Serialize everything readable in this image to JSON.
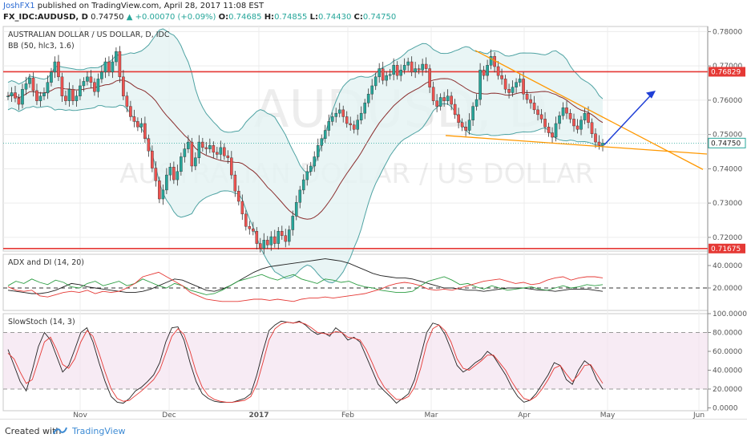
{
  "header": {
    "user": "JoshFX1",
    "published_text": " published on TradingView.com, April 28, 2017 11:08 EST",
    "symbol": "FX_IDC:AUDUSD, D",
    "last": "0.74750",
    "change": "+0.00070 (+0.09%)",
    "open": "0.74685",
    "high": "0.74855",
    "low": "0.74430",
    "close": "0.74750",
    "o_label": "O:",
    "h_label": "H:",
    "l_label": "L:",
    "c_label": "C:"
  },
  "footer": {
    "created_with": "Created with",
    "brand": "TradingView"
  },
  "watermark": {
    "big": "AUDUSD, D",
    "small": "AUSTRALIAN DOLLAR / US DOLLAR"
  },
  "colors": {
    "up": "#26a69a",
    "down": "#ef5350",
    "level": "#e53935",
    "trend": "#ff9800",
    "arrow": "#1f3fd6",
    "bb_band": "#4fa3a3",
    "bb_fill": "#e3f3f2",
    "bb_basis": "#8b2f2f",
    "adx": "#222222",
    "di_plus": "#2e9e44",
    "di_minus": "#e53935",
    "stoch_k": "#222222",
    "stoch_d": "#e53935"
  },
  "chart_data": [
    {
      "type": "candlestick",
      "title": "AUSTRALIAN DOLLAR / US DOLLAR, D, IDC",
      "indicator": "BB (50, hlc3, 1.6)",
      "ylim": [
        0.716,
        0.7815
      ],
      "y_ticks": [
        "0.78000",
        "0.77000",
        "0.76000",
        "0.75000",
        "0.74000",
        "0.73000",
        "0.72000"
      ],
      "x_ticks": [
        "Nov",
        "Dec",
        "2017",
        "Feb",
        "Mar",
        "Apr",
        "May",
        "Jun"
      ],
      "levels": [
        {
          "name": "resistance",
          "value": 0.76829,
          "label": "0.76829"
        },
        {
          "name": "support",
          "value": 0.71675,
          "label": "0.71675"
        }
      ],
      "last_price_label": "0.74750",
      "closes": [
        0.7612,
        0.7622,
        0.7606,
        0.7588,
        0.7632,
        0.7648,
        0.7665,
        0.7628,
        0.7598,
        0.7612,
        0.7621,
        0.7652,
        0.7682,
        0.7712,
        0.7668,
        0.7612,
        0.7598,
        0.7632,
        0.7598,
        0.7612,
        0.7642,
        0.7655,
        0.7668,
        0.7652,
        0.7625,
        0.7662,
        0.7682,
        0.7712,
        0.7682,
        0.7712,
        0.7742,
        0.7668,
        0.7612,
        0.7582,
        0.7552,
        0.7538,
        0.7522,
        0.7532,
        0.7488,
        0.7452,
        0.7402,
        0.7365,
        0.7312,
        0.7338,
        0.7382,
        0.7405,
        0.7368,
        0.7392,
        0.7435,
        0.7458,
        0.7478,
        0.7408,
        0.7432,
        0.7478,
        0.7462,
        0.7458,
        0.7468,
        0.7448,
        0.7442,
        0.7462,
        0.7438,
        0.7432,
        0.7382,
        0.7335,
        0.7305,
        0.7268,
        0.7232,
        0.7225,
        0.7218,
        0.7182,
        0.7168,
        0.7192,
        0.7178,
        0.7202,
        0.7182,
        0.7218,
        0.7205,
        0.7188,
        0.7222,
        0.7262,
        0.7302,
        0.7338,
        0.7368,
        0.7392,
        0.7408,
        0.7435,
        0.7468,
        0.7488,
        0.7512,
        0.7538,
        0.7552,
        0.7562,
        0.7572,
        0.7552,
        0.7532,
        0.7528,
        0.7515,
        0.7542,
        0.7562,
        0.7592,
        0.7618,
        0.7642,
        0.7668,
        0.7692,
        0.7658,
        0.7672,
        0.7675,
        0.7702,
        0.7672,
        0.7688,
        0.7702,
        0.7712,
        0.7682,
        0.7692,
        0.7688,
        0.7705,
        0.7692,
        0.7638,
        0.7598,
        0.7582,
        0.7608,
        0.7598,
        0.7612,
        0.7588,
        0.7558,
        0.7535,
        0.7522,
        0.7512,
        0.7542,
        0.7582,
        0.7602,
        0.7688,
        0.7672,
        0.7702,
        0.7728,
        0.7698,
        0.7672,
        0.7662,
        0.7632,
        0.7622,
        0.7638,
        0.7652,
        0.7662,
        0.7618,
        0.7602,
        0.7592,
        0.7572,
        0.7558,
        0.7545,
        0.7522,
        0.7505,
        0.7492,
        0.7532,
        0.7555,
        0.7578,
        0.7562,
        0.7545,
        0.7525,
        0.7515,
        0.7542,
        0.7562,
        0.7535,
        0.7502,
        0.7478,
        0.7468,
        0.7475
      ]
    },
    {
      "type": "line",
      "title": "ADX and DI (14, 20)",
      "ylim": [
        0,
        50
      ],
      "y_ticks": [
        "40.0000",
        "20.0000"
      ],
      "threshold": 20,
      "series": [
        {
          "name": "ADX",
          "values": [
            18,
            17,
            16,
            15,
            15,
            16,
            18,
            21,
            24,
            23,
            21,
            20,
            19,
            18,
            17,
            16,
            16,
            17,
            19,
            22,
            25,
            28,
            27,
            24,
            21,
            18,
            17,
            19,
            22,
            26,
            30,
            34,
            37,
            39,
            40,
            41,
            42,
            43,
            44,
            45,
            46,
            45,
            44,
            42,
            39,
            36,
            33,
            31,
            30,
            29,
            29,
            28,
            26,
            24,
            22,
            20,
            20,
            19,
            18,
            18,
            17,
            18,
            19,
            20,
            20,
            20,
            19,
            18,
            18,
            17,
            18,
            19,
            19,
            19,
            18,
            17
          ]
        },
        {
          "name": "+DI",
          "values": [
            22,
            26,
            24,
            28,
            25,
            23,
            27,
            25,
            21,
            20,
            24,
            26,
            22,
            24,
            26,
            22,
            24,
            28,
            25,
            22,
            20,
            24,
            22,
            18,
            16,
            14,
            15,
            18,
            22,
            26,
            28,
            30,
            32,
            29,
            27,
            30,
            32,
            28,
            26,
            24,
            28,
            27,
            25,
            26,
            23,
            21,
            20,
            18,
            17,
            16,
            16,
            17,
            22,
            26,
            28,
            30,
            27,
            23,
            24,
            21,
            19,
            22,
            20,
            18,
            19,
            20,
            21,
            19,
            18,
            20,
            22,
            20,
            21,
            23,
            22,
            23
          ]
        },
        {
          "name": "-DI",
          "values": [
            21,
            18,
            17,
            18,
            13,
            12,
            14,
            16,
            17,
            16,
            18,
            15,
            17,
            16,
            17,
            20,
            24,
            30,
            32,
            34,
            30,
            26,
            22,
            16,
            13,
            10,
            9,
            8,
            8,
            8,
            9,
            10,
            10,
            9,
            10,
            9,
            8,
            10,
            11,
            11,
            12,
            11,
            12,
            13,
            14,
            15,
            17,
            19,
            22,
            24,
            25,
            24,
            22,
            19,
            18,
            19,
            18,
            20,
            22,
            24,
            26,
            27,
            28,
            26,
            24,
            25,
            23,
            24,
            27,
            29,
            30,
            27,
            29,
            30,
            30,
            29
          ]
        }
      ]
    },
    {
      "type": "line",
      "title": "SlowStoch (14, 3)",
      "ylim": [
        -3,
        100
      ],
      "y_ticks": [
        "100.0000",
        "80.0000",
        "60.0000",
        "40.0000",
        "20.0000",
        "0.0000"
      ],
      "upper_band": 80,
      "lower_band": 20,
      "series": [
        {
          "name": "%K",
          "values": [
            62,
            45,
            28,
            18,
            40,
            65,
            80,
            72,
            55,
            38,
            45,
            62,
            80,
            85,
            70,
            48,
            28,
            12,
            6,
            5,
            10,
            18,
            22,
            28,
            35,
            48,
            70,
            85,
            86,
            72,
            48,
            28,
            15,
            10,
            7,
            6,
            6,
            6,
            8,
            10,
            15,
            35,
            60,
            82,
            88,
            92,
            91,
            90,
            92,
            88,
            82,
            78,
            80,
            76,
            85,
            80,
            72,
            75,
            70,
            55,
            40,
            25,
            18,
            12,
            5,
            10,
            15,
            30,
            55,
            80,
            90,
            88,
            78,
            62,
            45,
            38,
            42,
            48,
            52,
            60,
            55,
            45,
            35,
            22,
            12,
            6,
            8,
            15,
            25,
            35,
            48,
            45,
            30,
            25,
            40,
            50,
            45,
            30,
            20
          ]
        },
        {
          "name": "%D",
          "values": [
            58,
            52,
            38,
            26,
            30,
            50,
            70,
            75,
            62,
            46,
            42,
            52,
            70,
            82,
            76,
            58,
            38,
            20,
            10,
            7,
            8,
            13,
            18,
            24,
            30,
            40,
            58,
            76,
            84,
            78,
            60,
            38,
            22,
            13,
            9,
            7,
            6,
            6,
            7,
            8,
            12,
            25,
            48,
            72,
            84,
            89,
            91,
            90,
            91,
            89,
            85,
            80,
            79,
            78,
            81,
            80,
            75,
            74,
            72,
            62,
            48,
            33,
            22,
            15,
            9,
            9,
            12,
            22,
            42,
            68,
            84,
            88,
            82,
            70,
            52,
            42,
            40,
            45,
            50,
            56,
            56,
            48,
            40,
            28,
            18,
            10,
            8,
            12,
            20,
            30,
            42,
            45,
            36,
            28,
            35,
            45,
            46,
            36,
            26
          ]
        }
      ]
    }
  ]
}
